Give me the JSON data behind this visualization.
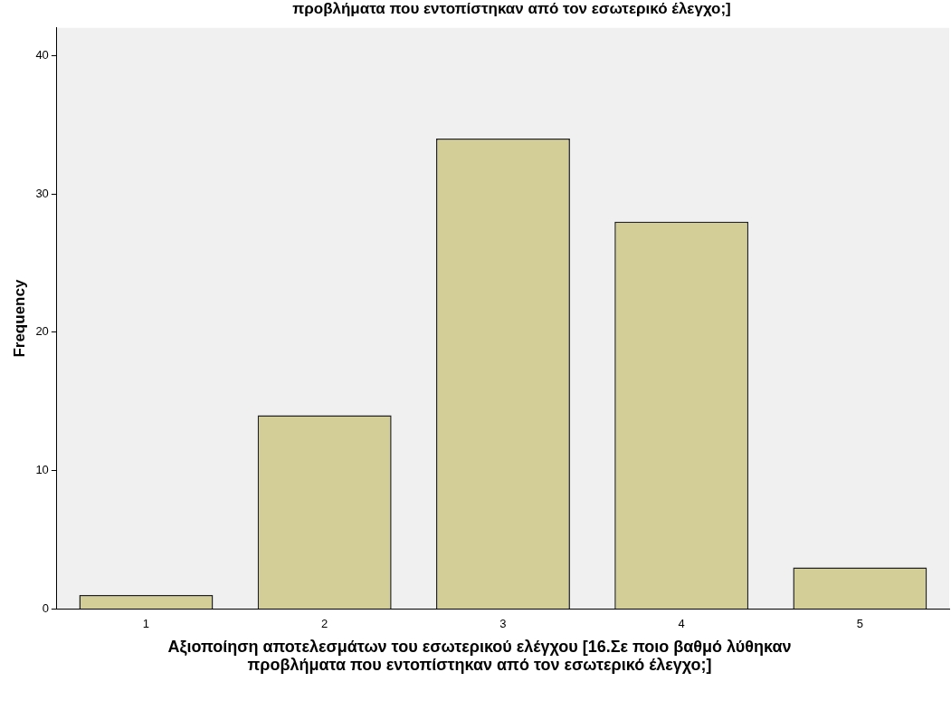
{
  "chart_data": {
    "type": "bar",
    "title": "προβλήματα που εντοπίστηκαν από τον εσωτερικό έλεγχο;]",
    "xlabel": "Αξιοποίηση αποτελεσμάτων του εσωτερικού ελέγχου [16.Σε ποιο βαθμό λύθηκαν προβλήματα που εντοπίστηκαν από τον εσωτερικό έλεγχο;]",
    "ylabel": "Frequency",
    "categories": [
      "1",
      "2",
      "3",
      "4",
      "5"
    ],
    "values": [
      1,
      14,
      34,
      28,
      3
    ],
    "color": "#d3ce97",
    "ylim": [
      0,
      42
    ],
    "yticks": [
      0,
      10,
      20,
      30,
      40
    ],
    "grid": false,
    "legend": false
  }
}
